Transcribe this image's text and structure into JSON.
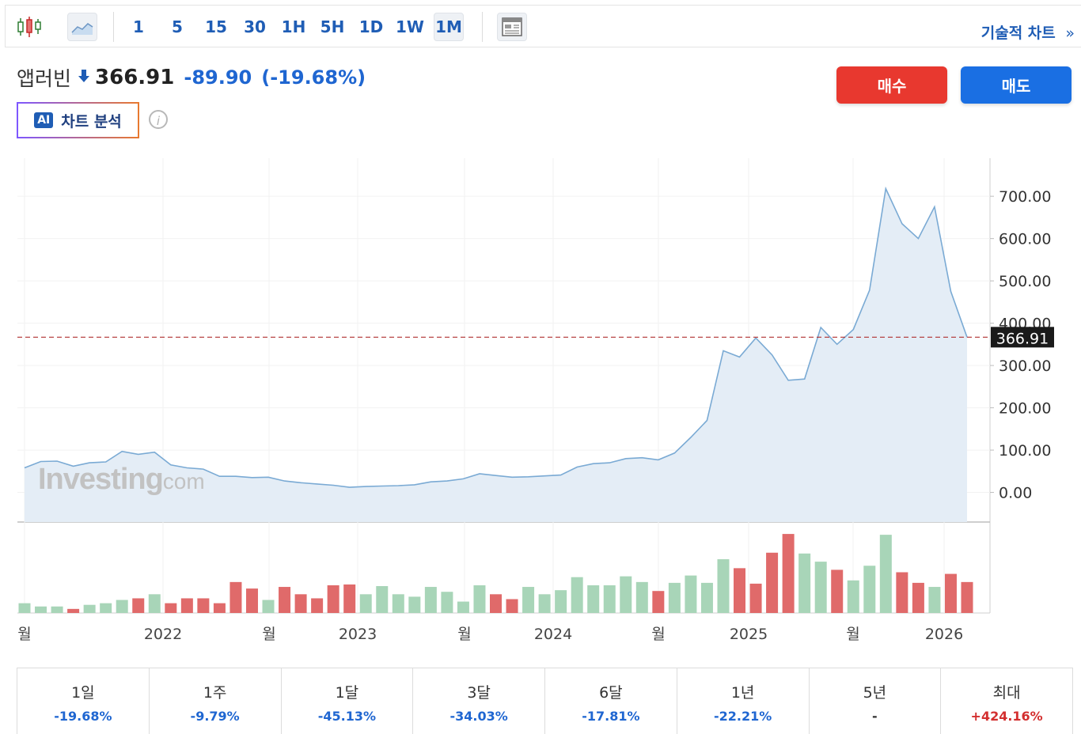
{
  "toolbar": {
    "intervals": [
      "1",
      "5",
      "15",
      "30",
      "1H",
      "5H",
      "1D",
      "1W",
      "1M"
    ],
    "active_interval": "1M",
    "tech_chart_label": "기술적 차트",
    "tech_chart_arrow": "»"
  },
  "quote": {
    "name": "앱러빈",
    "price": "366.91",
    "change": "-89.90",
    "change_pct": "(-19.68%)",
    "direction": "down"
  },
  "ai_button": {
    "badge": "AI",
    "label": "차트 분석"
  },
  "info_icon": "i",
  "actions": {
    "buy": "매수",
    "sell": "매도"
  },
  "colors": {
    "up": "#a8d5b8",
    "down": "#e06a6a",
    "line": "#7aaad4",
    "accent": "#1f5db5"
  },
  "watermark": {
    "main": "Investing",
    "suffix": ".com"
  },
  "chart_data": {
    "type": "area",
    "price_axis": {
      "ticks": [
        "0.00",
        "100.00",
        "200.00",
        "300.00",
        "400.00",
        "500.00",
        "600.00",
        "700.00"
      ],
      "ylim": [
        -70,
        790
      ]
    },
    "current_price_label": "366.91",
    "current_price": 366.91,
    "x_labels": [
      "월",
      "2022",
      "월",
      "2023",
      "월",
      "2024",
      "월",
      "2025",
      "월",
      "2026"
    ],
    "series": [
      {
        "values": [
          58,
          73,
          74,
          62,
          70,
          72,
          97,
          90,
          95,
          65,
          58,
          55,
          38,
          38,
          35,
          36,
          27,
          23,
          20,
          17,
          12,
          14,
          15,
          16,
          18,
          25,
          27,
          32,
          44,
          40,
          36,
          37,
          39,
          41,
          60,
          68,
          70,
          80,
          82,
          77,
          93,
          130,
          170,
          335,
          320,
          365,
          325,
          265,
          268,
          390,
          350,
          385,
          478,
          718,
          635,
          600,
          675,
          475,
          366.91
        ]
      }
    ],
    "volume": [
      {
        "v": 12,
        "d": "up"
      },
      {
        "v": 8,
        "d": "up"
      },
      {
        "v": 8,
        "d": "up"
      },
      {
        "v": 5,
        "d": "down"
      },
      {
        "v": 10,
        "d": "up"
      },
      {
        "v": 12,
        "d": "up"
      },
      {
        "v": 16,
        "d": "up"
      },
      {
        "v": 18,
        "d": "down"
      },
      {
        "v": 23,
        "d": "up"
      },
      {
        "v": 12,
        "d": "down"
      },
      {
        "v": 18,
        "d": "down"
      },
      {
        "v": 18,
        "d": "down"
      },
      {
        "v": 12,
        "d": "down"
      },
      {
        "v": 38,
        "d": "down"
      },
      {
        "v": 30,
        "d": "down"
      },
      {
        "v": 16,
        "d": "up"
      },
      {
        "v": 32,
        "d": "down"
      },
      {
        "v": 23,
        "d": "down"
      },
      {
        "v": 18,
        "d": "down"
      },
      {
        "v": 34,
        "d": "down"
      },
      {
        "v": 35,
        "d": "down"
      },
      {
        "v": 23,
        "d": "up"
      },
      {
        "v": 33,
        "d": "up"
      },
      {
        "v": 23,
        "d": "up"
      },
      {
        "v": 20,
        "d": "up"
      },
      {
        "v": 32,
        "d": "up"
      },
      {
        "v": 26,
        "d": "up"
      },
      {
        "v": 14,
        "d": "up"
      },
      {
        "v": 34,
        "d": "up"
      },
      {
        "v": 23,
        "d": "down"
      },
      {
        "v": 17,
        "d": "down"
      },
      {
        "v": 32,
        "d": "up"
      },
      {
        "v": 23,
        "d": "up"
      },
      {
        "v": 28,
        "d": "up"
      },
      {
        "v": 44,
        "d": "up"
      },
      {
        "v": 34,
        "d": "up"
      },
      {
        "v": 34,
        "d": "up"
      },
      {
        "v": 45,
        "d": "up"
      },
      {
        "v": 38,
        "d": "up"
      },
      {
        "v": 27,
        "d": "down"
      },
      {
        "v": 37,
        "d": "up"
      },
      {
        "v": 46,
        "d": "up"
      },
      {
        "v": 37,
        "d": "up"
      },
      {
        "v": 66,
        "d": "up"
      },
      {
        "v": 55,
        "d": "down"
      },
      {
        "v": 36,
        "d": "down"
      },
      {
        "v": 74,
        "d": "down"
      },
      {
        "v": 97,
        "d": "down"
      },
      {
        "v": 73,
        "d": "up"
      },
      {
        "v": 63,
        "d": "up"
      },
      {
        "v": 53,
        "d": "down"
      },
      {
        "v": 40,
        "d": "up"
      },
      {
        "v": 58,
        "d": "up"
      },
      {
        "v": 96,
        "d": "up"
      },
      {
        "v": 50,
        "d": "down"
      },
      {
        "v": 37,
        "d": "down"
      },
      {
        "v": 32,
        "d": "up"
      },
      {
        "v": 48,
        "d": "down"
      },
      {
        "v": 38,
        "d": "down"
      }
    ]
  },
  "performance": [
    {
      "label": "1일",
      "value": "-19.68%",
      "dir": "neg"
    },
    {
      "label": "1주",
      "value": "-9.79%",
      "dir": "neg"
    },
    {
      "label": "1달",
      "value": "-45.13%",
      "dir": "neg"
    },
    {
      "label": "3달",
      "value": "-34.03%",
      "dir": "neg"
    },
    {
      "label": "6달",
      "value": "-17.81%",
      "dir": "neg"
    },
    {
      "label": "1년",
      "value": "-22.21%",
      "dir": "neg"
    },
    {
      "label": "5년",
      "value": "-",
      "dir": "none"
    },
    {
      "label": "최대",
      "value": "+424.16%",
      "dir": "pos"
    }
  ]
}
